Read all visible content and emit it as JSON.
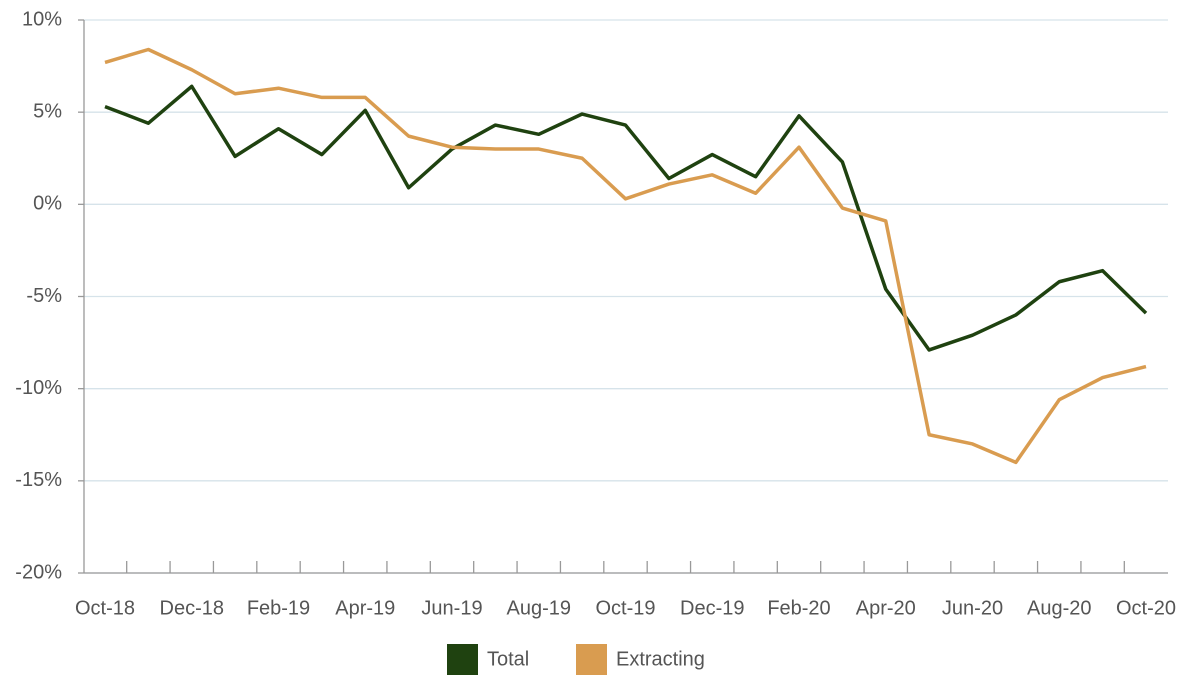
{
  "chart_data": {
    "type": "line",
    "categories": [
      "Oct-18",
      null,
      "Dec-18",
      null,
      "Feb-19",
      null,
      "Apr-19",
      null,
      "Jun-19",
      null,
      "Aug-19",
      null,
      "Oct-19",
      null,
      "Dec-19",
      null,
      "Feb-20",
      null,
      "Apr-20",
      null,
      "Jun-20",
      null,
      "Aug-20",
      null,
      "Oct-20"
    ],
    "series": [
      {
        "name": "Total",
        "color": "#1f4210",
        "values": [
          5.3,
          4.4,
          6.4,
          2.6,
          4.1,
          2.7,
          5.1,
          0.9,
          3.0,
          4.3,
          3.8,
          4.9,
          4.3,
          1.4,
          2.7,
          1.5,
          4.8,
          2.3,
          -4.6,
          -7.9,
          -7.1,
          -6.0,
          -4.2,
          -3.6,
          -5.9
        ]
      },
      {
        "name": "Extracting",
        "color": "#d99c50",
        "values": [
          7.7,
          8.4,
          7.3,
          6.0,
          6.3,
          5.8,
          5.8,
          3.7,
          3.1,
          3.0,
          3.0,
          2.5,
          0.3,
          1.1,
          1.6,
          0.6,
          3.1,
          -0.2,
          -0.9,
          -12.5,
          -13.0,
          -14.0,
          -10.6,
          -9.4,
          -8.8
        ]
      }
    ],
    "ylim": [
      -20,
      10
    ],
    "yticks": [
      {
        "value": -20,
        "label": "-20%"
      },
      {
        "value": -15,
        "label": "-15%"
      },
      {
        "value": -10,
        "label": "-10%"
      },
      {
        "value": -5,
        "label": "-5%"
      },
      {
        "value": 0,
        "label": "0%"
      },
      {
        "value": 5,
        "label": "5%"
      },
      {
        "value": 10,
        "label": "10%"
      }
    ],
    "grid": true,
    "legend": "bottom"
  }
}
